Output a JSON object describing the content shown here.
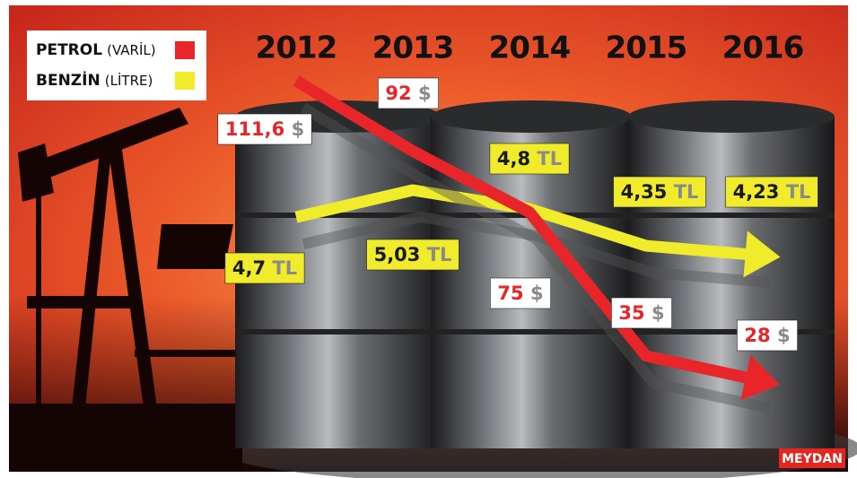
{
  "chart_data": {
    "type": "line",
    "categories": [
      "2012",
      "2013",
      "2014",
      "2015",
      "2016"
    ],
    "series": [
      {
        "name": "PETROL",
        "unit": "(VARİL)",
        "color": "#e8262a",
        "values": [
          111.6,
          92,
          75,
          35,
          28
        ],
        "value_labels": [
          "111,6 $",
          "92 $",
          "75 $",
          "35 $",
          "28 $"
        ]
      },
      {
        "name": "BENZİN",
        "unit": "(LİTRE)",
        "color": "#f1ec2b",
        "values": [
          4.7,
          5.03,
          4.8,
          4.35,
          4.23
        ],
        "value_labels": [
          "4,7 TL",
          "5,03 TL",
          "4,8 TL",
          "4,35 TL",
          "4,23 TL"
        ]
      }
    ],
    "source": "MEYDAN"
  }
}
